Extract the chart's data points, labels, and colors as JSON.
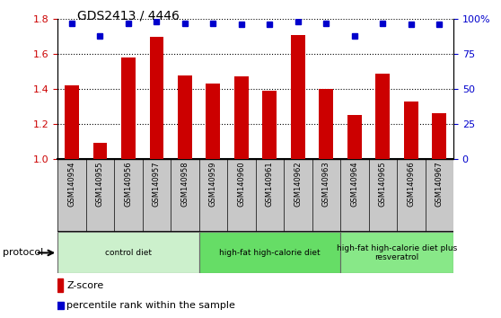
{
  "title": "GDS2413 / 4446",
  "samples": [
    "GSM140954",
    "GSM140955",
    "GSM140956",
    "GSM140957",
    "GSM140958",
    "GSM140959",
    "GSM140960",
    "GSM140961",
    "GSM140962",
    "GSM140963",
    "GSM140964",
    "GSM140965",
    "GSM140966",
    "GSM140967"
  ],
  "zscore": [
    1.42,
    1.09,
    1.58,
    1.7,
    1.48,
    1.43,
    1.47,
    1.39,
    1.71,
    1.4,
    1.25,
    1.49,
    1.33,
    1.26
  ],
  "percentile": [
    97,
    88,
    97,
    98,
    97,
    97,
    96,
    96,
    98,
    97,
    88,
    97,
    96,
    96
  ],
  "bar_color": "#cc0000",
  "dot_color": "#0000cc",
  "ylim_left": [
    1.0,
    1.8
  ],
  "ylim_right": [
    0,
    100
  ],
  "yticks_left": [
    1.0,
    1.2,
    1.4,
    1.6,
    1.8
  ],
  "yticks_right": [
    0,
    25,
    50,
    75,
    100
  ],
  "groups": [
    {
      "label": "control diet",
      "start": 0,
      "end": 5,
      "color": "#ccf0cc"
    },
    {
      "label": "high-fat high-calorie diet",
      "start": 5,
      "end": 10,
      "color": "#66dd66"
    },
    {
      "label": "high-fat high-calorie diet plus\nresveratrol",
      "start": 10,
      "end": 14,
      "color": "#88e888"
    }
  ],
  "protocol_label": "protocol",
  "legend_zscore": "Z-score",
  "legend_percentile": "percentile rank within the sample",
  "tick_label_color_left": "#cc0000",
  "tick_label_color_right": "#0000cc",
  "xtick_bg_color": "#c8c8c8",
  "bar_width": 0.5
}
